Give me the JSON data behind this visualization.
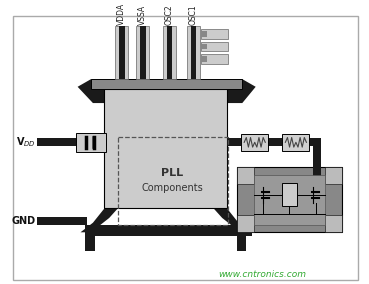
{
  "bg_color": "#f2f2f2",
  "border_color": "#aaaaaa",
  "chip_light": "#cccccc",
  "chip_mid": "#aaaaaa",
  "chip_dark": "#888888",
  "wire_dark": "#1a1a1a",
  "wire_color": "#333333",
  "comp_bg": "#d8d8d8",
  "crystal_bg": "#888888",
  "crystal_inner": "#aaaaaa",
  "pad_color": "#bbbbbb",
  "text_color": "#111111",
  "watermark_color": "#33aa33",
  "watermark": "www.cntronics.com",
  "pin_labels_top": [
    "VDDA",
    "VSSA",
    "OSC2",
    "OSC1"
  ],
  "watermark_fontsize": 6.5
}
